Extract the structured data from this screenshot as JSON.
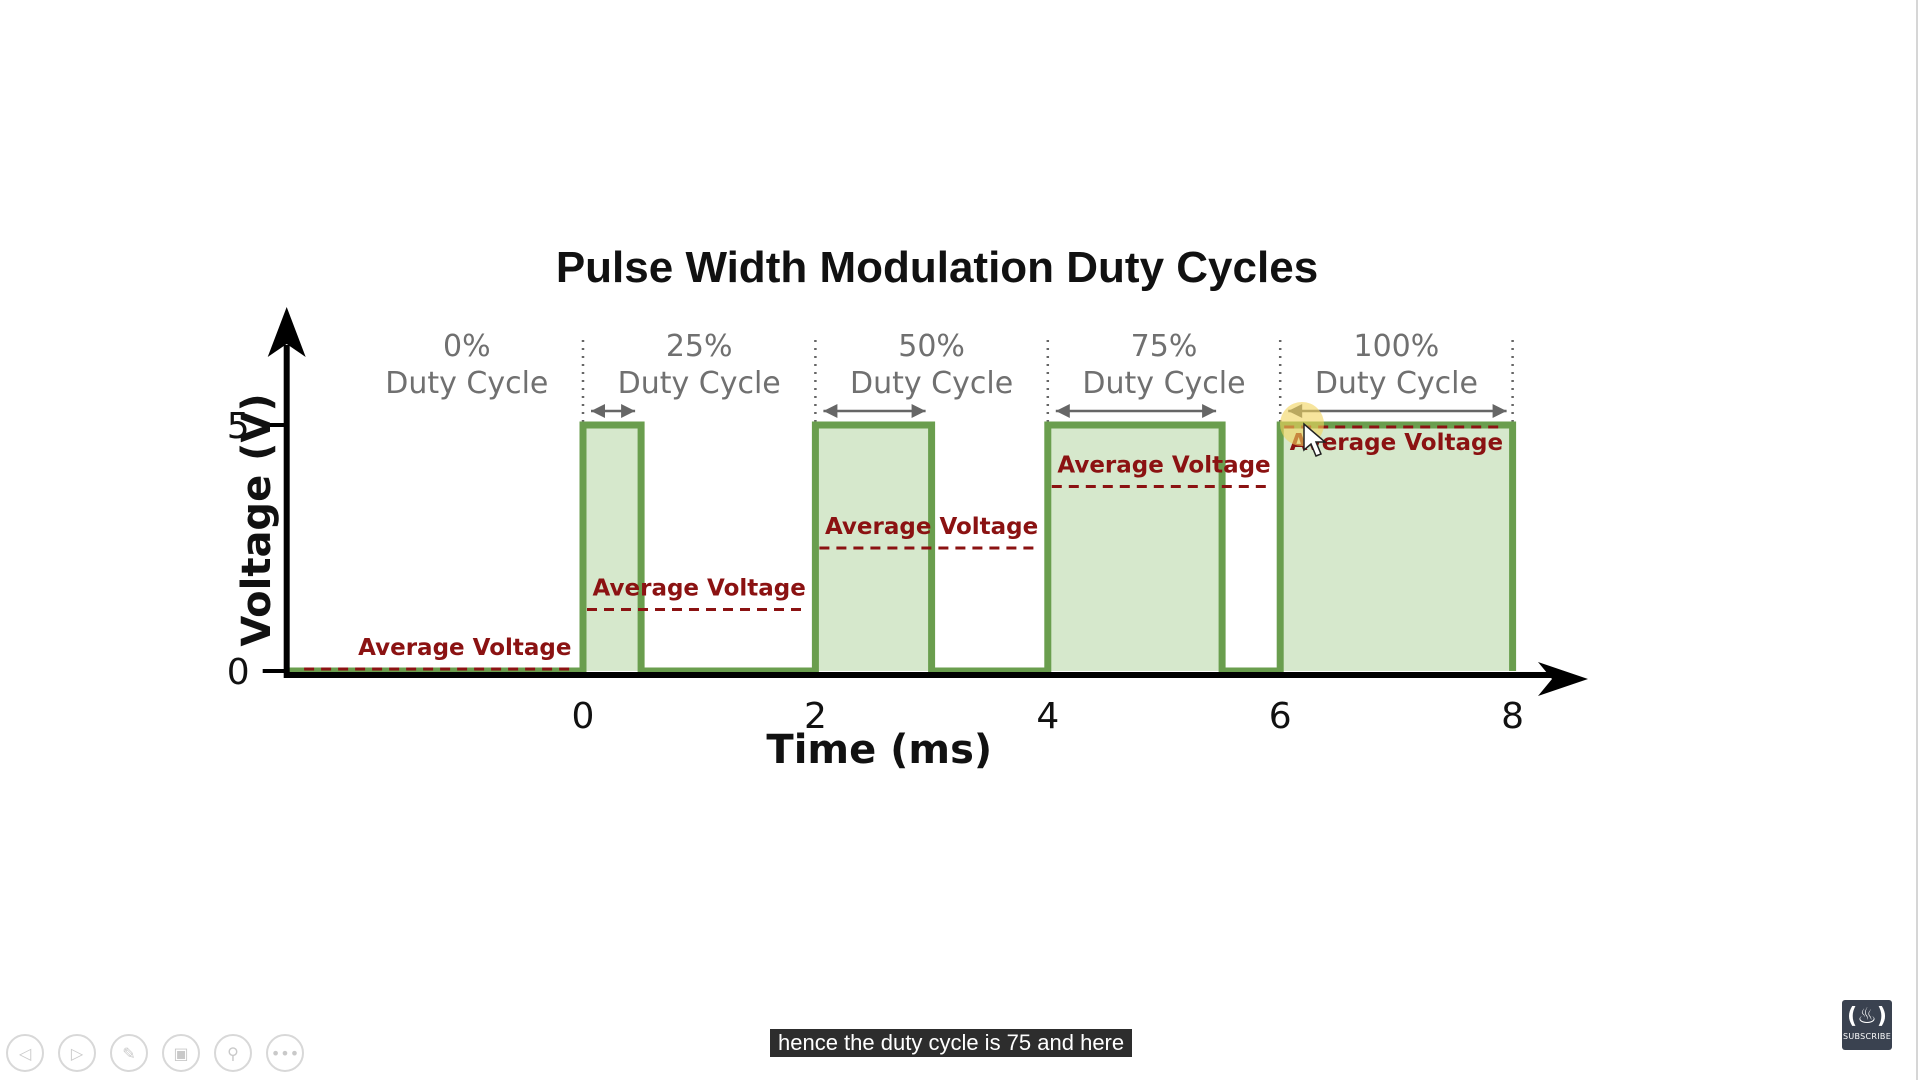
{
  "slide": {
    "chart_data": {
      "type": "line",
      "title": "Pulse Width Modulation Duty Cycles",
      "xlabel": "Time (ms)",
      "ylabel": "Voltage (V)",
      "xlim": [
        -2.55,
        8
      ],
      "ylim": [
        0,
        5
      ],
      "x_ticks": [
        "0",
        "2",
        "4",
        "6",
        "8"
      ],
      "y_ticks": [
        "0",
        "5"
      ],
      "series": [
        {
          "name": "",
          "x": [
            -2.55,
            0,
            0,
            0.5,
            0.5,
            2,
            2,
            3,
            3,
            4,
            4,
            5.5,
            5.5,
            6,
            6,
            8,
            8
          ],
          "y": [
            0,
            0,
            5,
            5,
            0,
            0,
            5,
            5,
            0,
            0,
            5,
            5,
            0,
            0,
            5,
            5,
            0
          ]
        }
      ],
      "segments": [
        {
          "duty": "0%",
          "label": "Duty Cycle",
          "start": -2,
          "end": 0,
          "avg_voltage": 0,
          "avg_label": "Average Voltage"
        },
        {
          "duty": "25%",
          "label": "Duty Cycle",
          "start": 0,
          "end": 2,
          "avg_voltage": 1.25,
          "avg_label": "Average Voltage"
        },
        {
          "duty": "50%",
          "label": "Duty Cycle",
          "start": 2,
          "end": 4,
          "avg_voltage": 2.5,
          "avg_label": "Average Voltage"
        },
        {
          "duty": "75%",
          "label": "Duty Cycle",
          "start": 4,
          "end": 6,
          "avg_voltage": 3.75,
          "avg_label": "Average Voltage"
        },
        {
          "duty": "100%",
          "label": "Duty Cycle",
          "start": 6,
          "end": 8,
          "avg_voltage": 5,
          "avg_label": "Average Voltage"
        }
      ],
      "grid": false,
      "colors": {
        "signal": "#6a9e4e",
        "fill": "#d6e8cc",
        "average": "#8b1212",
        "divider": "#666666",
        "axis": "#000000"
      }
    }
  },
  "caption": {
    "text": "hence the duty cycle is 75 and here"
  },
  "toolbar": {
    "buttons": [
      {
        "icon": "previous-icon",
        "glyph": "◁"
      },
      {
        "icon": "next-icon",
        "glyph": "▷"
      },
      {
        "icon": "pen-icon",
        "glyph": "✎"
      },
      {
        "icon": "slides-icon",
        "glyph": "▣"
      },
      {
        "icon": "zoom-icon",
        "glyph": "⚲"
      },
      {
        "icon": "more-icon",
        "glyph": "•••"
      }
    ]
  },
  "subscribe": {
    "glyph": "(♨)",
    "label": "SUBSCRIBE",
    "icon": "freecodecamp-logo-icon"
  }
}
